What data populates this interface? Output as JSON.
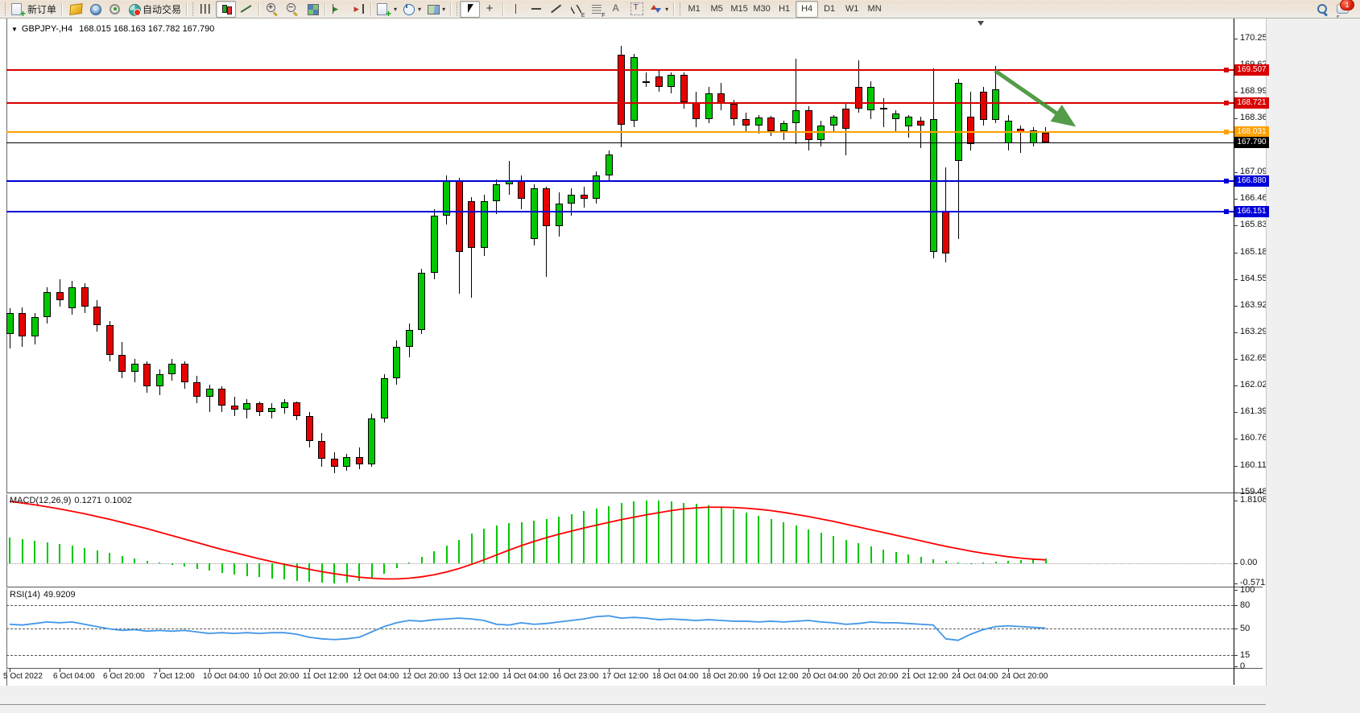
{
  "toolbar": {
    "new_order_label": "新订单",
    "autotrading_label": "自动交易",
    "timeframes": {
      "labels": [
        "M1",
        "M5",
        "M15",
        "M30",
        "H1",
        "H4",
        "D1",
        "W1",
        "MN"
      ],
      "active": "H4"
    },
    "chat_badge": "1"
  },
  "chart": {
    "title": {
      "collapse_arrow": "▼",
      "symbol_period": "GBPJPY-,H4",
      "ohlc": "168.015 168.163 167.782 167.790"
    },
    "indicators_labels": {
      "macd_name": "MACD(12,26,9)",
      "macd_value": "0.1271",
      "macd_signal_value": "0.1002",
      "rsi_name": "RSI(14)",
      "rsi_value": "49.9209"
    }
  },
  "chart_data": {
    "type": "candlestick",
    "symbol": "GBPJPY-",
    "timeframe": "H4",
    "current_bar": {
      "open": 168.015,
      "high": 168.163,
      "low": 167.782,
      "close": 167.79
    },
    "colors": {
      "bull": "#00C800",
      "bear": "#E60000",
      "wick": "#000000",
      "macd_hist": "#00C800",
      "macd_signal": "#FF0000",
      "rsi_line": "#4296E8",
      "arrow": "#3E8F2F"
    },
    "y_axis_ticks": [
      {
        "v": 170.255,
        "t": "170.255"
      },
      {
        "v": 169.625,
        "t": "169.625"
      },
      {
        "v": 168.995,
        "t": "168.995"
      },
      {
        "v": 168.365,
        "t": "168.365"
      },
      {
        "v": 167.09,
        "t": "167.090"
      },
      {
        "v": 166.46,
        "t": "166.460"
      },
      {
        "v": 165.83,
        "t": "165.830"
      },
      {
        "v": 165.185,
        "t": "165.185"
      },
      {
        "v": 164.555,
        "t": "164.555"
      },
      {
        "v": 163.925,
        "t": "163.925"
      },
      {
        "v": 163.295,
        "t": "163.295"
      },
      {
        "v": 162.65,
        "t": "162.650"
      },
      {
        "v": 162.02,
        "t": "162.020"
      },
      {
        "v": 161.39,
        "t": "161.390"
      },
      {
        "v": 160.76,
        "t": "160.760"
      },
      {
        "v": 160.115,
        "t": "160.115"
      },
      {
        "v": 159.485,
        "t": "159.485"
      }
    ],
    "x_labels": [
      "5 Oct 2022",
      "6 Oct 04:00",
      "6 Oct 20:00",
      "7 Oct 12:00",
      "10 Oct 04:00",
      "10 Oct 20:00",
      "11 Oct 12:00",
      "12 Oct 04:00",
      "12 Oct 20:00",
      "13 Oct 12:00",
      "14 Oct 04:00",
      "16 Oct 23:00",
      "17 Oct 12:00",
      "18 Oct 04:00",
      "18 Oct 20:00",
      "19 Oct 12:00",
      "20 Oct 04:00",
      "20 Oct 20:00",
      "21 Oct 12:00",
      "24 Oct 04:00",
      "24 Oct 20:00"
    ],
    "bars_per_label": 4,
    "horizontal_lines": [
      {
        "price": 169.507,
        "tag": "169.507",
        "color": "#D80000",
        "width": 2,
        "handle": true
      },
      {
        "price": 168.721,
        "tag": "168.721",
        "color": "#D80000",
        "width": 2,
        "handle": true
      },
      {
        "price": 168.031,
        "tag": "168.031",
        "color": "#FFA000",
        "width": 2,
        "handle": true
      },
      {
        "price": 167.79,
        "tag": "167.790",
        "color": "#000000",
        "width": 1,
        "handle": false
      },
      {
        "price": 166.88,
        "tag": "166.880",
        "color": "#0000D8",
        "width": 2,
        "handle": true
      },
      {
        "price": 166.151,
        "tag": "166.151",
        "color": "#0000D8",
        "width": 2,
        "handle": true
      }
    ],
    "candles": [
      [
        163.25,
        163.85,
        162.9,
        163.75
      ],
      [
        163.75,
        163.88,
        162.95,
        163.2
      ],
      [
        163.2,
        163.75,
        163.0,
        163.65
      ],
      [
        163.65,
        164.35,
        163.5,
        164.25
      ],
      [
        164.25,
        164.55,
        163.9,
        164.05
      ],
      [
        163.85,
        164.5,
        163.7,
        164.35
      ],
      [
        164.35,
        164.45,
        163.75,
        163.9
      ],
      [
        163.9,
        164.05,
        163.3,
        163.45
      ],
      [
        163.45,
        163.55,
        162.6,
        162.75
      ],
      [
        162.75,
        163.05,
        162.2,
        162.35
      ],
      [
        162.35,
        162.65,
        162.1,
        162.55
      ],
      [
        162.55,
        162.6,
        161.85,
        162.0
      ],
      [
        162.0,
        162.4,
        161.8,
        162.3
      ],
      [
        162.3,
        162.65,
        162.15,
        162.55
      ],
      [
        162.55,
        162.6,
        161.95,
        162.1
      ],
      [
        162.1,
        162.25,
        161.6,
        161.75
      ],
      [
        161.75,
        162.05,
        161.4,
        161.95
      ],
      [
        161.95,
        162.0,
        161.4,
        161.55
      ],
      [
        161.55,
        161.75,
        161.3,
        161.45
      ],
      [
        161.45,
        161.7,
        161.25,
        161.6
      ],
      [
        161.6,
        161.65,
        161.3,
        161.4
      ],
      [
        161.4,
        161.6,
        161.25,
        161.5
      ],
      [
        161.5,
        161.7,
        161.35,
        161.62
      ],
      [
        161.62,
        161.65,
        161.2,
        161.3
      ],
      [
        161.3,
        161.4,
        160.55,
        160.7
      ],
      [
        160.7,
        160.9,
        160.1,
        160.28
      ],
      [
        160.28,
        160.45,
        159.95,
        160.1
      ],
      [
        160.1,
        160.4,
        160.0,
        160.32
      ],
      [
        160.32,
        160.55,
        160.05,
        160.15
      ],
      [
        160.15,
        161.35,
        160.1,
        161.25
      ],
      [
        161.25,
        162.3,
        161.15,
        162.2
      ],
      [
        162.2,
        163.1,
        162.05,
        162.95
      ],
      [
        162.95,
        163.5,
        162.7,
        163.35
      ],
      [
        163.35,
        164.8,
        163.25,
        164.7
      ],
      [
        164.7,
        166.2,
        164.55,
        166.05
      ],
      [
        166.05,
        167.0,
        165.85,
        166.9
      ],
      [
        166.88,
        166.95,
        164.2,
        165.19
      ],
      [
        166.4,
        166.5,
        164.1,
        165.3
      ],
      [
        165.3,
        166.55,
        165.1,
        166.4
      ],
      [
        166.4,
        166.92,
        166.1,
        166.8
      ],
      [
        166.8,
        167.35,
        166.55,
        166.9
      ],
      [
        166.9,
        167.0,
        166.2,
        166.45
      ],
      [
        165.5,
        166.8,
        165.35,
        166.7
      ],
      [
        166.7,
        166.75,
        164.6,
        165.8
      ],
      [
        165.8,
        166.6,
        165.55,
        166.35
      ],
      [
        166.35,
        166.7,
        166.05,
        166.55
      ],
      [
        166.55,
        166.75,
        166.25,
        166.45
      ],
      [
        166.45,
        167.1,
        166.35,
        167.0
      ],
      [
        167.0,
        167.6,
        166.9,
        167.5
      ],
      [
        169.87,
        170.08,
        167.68,
        168.21
      ],
      [
        168.3,
        169.9,
        168.15,
        169.82
      ],
      [
        169.25,
        169.45,
        169.1,
        169.2
      ],
      [
        169.36,
        169.5,
        169.0,
        169.11
      ],
      [
        169.1,
        169.45,
        168.95,
        169.4
      ],
      [
        169.4,
        169.45,
        168.6,
        168.75
      ],
      [
        168.75,
        169.0,
        168.15,
        168.35
      ],
      [
        168.35,
        169.1,
        168.25,
        168.95
      ],
      [
        168.95,
        169.2,
        168.55,
        168.7
      ],
      [
        168.7,
        168.8,
        168.2,
        168.35
      ],
      [
        168.35,
        168.5,
        168.05,
        168.2
      ],
      [
        168.2,
        168.45,
        168.0,
        168.38
      ],
      [
        168.38,
        168.42,
        167.95,
        168.05
      ],
      [
        168.05,
        168.3,
        167.85,
        168.25
      ],
      [
        168.25,
        169.78,
        167.75,
        168.55
      ],
      [
        168.55,
        168.65,
        167.6,
        167.85
      ],
      [
        167.85,
        168.3,
        167.7,
        168.2
      ],
      [
        168.2,
        168.45,
        168.05,
        168.4
      ],
      [
        168.6,
        168.7,
        167.49,
        168.12
      ],
      [
        169.1,
        169.74,
        168.5,
        168.6
      ],
      [
        168.55,
        169.25,
        168.35,
        169.1
      ],
      [
        168.6,
        168.85,
        168.15,
        168.62
      ],
      [
        168.35,
        168.55,
        168.05,
        168.48
      ],
      [
        168.17,
        168.45,
        167.9,
        168.4
      ],
      [
        168.3,
        168.4,
        167.65,
        168.2
      ],
      [
        165.2,
        169.55,
        165.05,
        168.35
      ],
      [
        166.15,
        167.2,
        164.95,
        165.15
      ],
      [
        167.35,
        169.3,
        165.5,
        169.2
      ],
      [
        168.4,
        169.0,
        167.6,
        167.75
      ],
      [
        169.0,
        169.1,
        168.2,
        168.32
      ],
      [
        168.32,
        169.6,
        168.25,
        169.05
      ],
      [
        167.78,
        168.45,
        167.6,
        168.3
      ],
      [
        168.12,
        168.2,
        167.55,
        168.04
      ],
      [
        167.78,
        168.16,
        167.7,
        168.07
      ],
      [
        168.015,
        168.163,
        167.782,
        167.79
      ]
    ],
    "indicators": {
      "macd": {
        "params": "12,26,9",
        "current": 0.1271,
        "current_signal": 0.1002,
        "scale_ticks": [
          {
            "v": 1.8108,
            "t": "1.8108"
          },
          {
            "v": 0,
            "t": "0.00"
          },
          {
            "v": -0.5712,
            "t": "-0.5712"
          }
        ],
        "histogram": [
          0.75,
          0.7,
          0.66,
          0.6,
          0.55,
          0.5,
          0.44,
          0.38,
          0.3,
          0.22,
          0.15,
          0.08,
          0.02,
          -0.04,
          -0.1,
          -0.16,
          -0.22,
          -0.27,
          -0.32,
          -0.36,
          -0.4,
          -0.44,
          -0.47,
          -0.5,
          -0.53,
          -0.55,
          -0.57,
          -0.55,
          -0.5,
          -0.42,
          -0.3,
          -0.15,
          0.02,
          0.18,
          0.35,
          0.52,
          0.68,
          0.85,
          1.0,
          1.1,
          1.15,
          1.18,
          1.22,
          1.28,
          1.35,
          1.42,
          1.5,
          1.58,
          1.66,
          1.73,
          1.78,
          1.81,
          1.8,
          1.78,
          1.75,
          1.72,
          1.68,
          1.62,
          1.55,
          1.47,
          1.38,
          1.28,
          1.18,
          1.08,
          0.98,
          0.88,
          0.78,
          0.68,
          0.58,
          0.48,
          0.4,
          0.32,
          0.25,
          0.18,
          0.12,
          0.06,
          0.02,
          0.0,
          0.02,
          0.05,
          0.08,
          0.1,
          0.12,
          0.13
        ],
        "signal": [
          1.79,
          1.74,
          1.69,
          1.63,
          1.57,
          1.5,
          1.43,
          1.35,
          1.27,
          1.18,
          1.09,
          1.0,
          0.9,
          0.8,
          0.7,
          0.6,
          0.5,
          0.4,
          0.31,
          0.22,
          0.13,
          0.05,
          -0.03,
          -0.1,
          -0.17,
          -0.24,
          -0.3,
          -0.35,
          -0.4,
          -0.43,
          -0.45,
          -0.45,
          -0.43,
          -0.39,
          -0.33,
          -0.25,
          -0.15,
          -0.03,
          0.1,
          0.24,
          0.38,
          0.51,
          0.63,
          0.74,
          0.84,
          0.93,
          1.02,
          1.1,
          1.18,
          1.26,
          1.33,
          1.4,
          1.46,
          1.52,
          1.57,
          1.6,
          1.62,
          1.62,
          1.61,
          1.59,
          1.56,
          1.52,
          1.47,
          1.41,
          1.35,
          1.28,
          1.21,
          1.13,
          1.05,
          0.97,
          0.89,
          0.81,
          0.73,
          0.65,
          0.57,
          0.49,
          0.42,
          0.35,
          0.29,
          0.24,
          0.19,
          0.15,
          0.12,
          0.1
        ]
      },
      "rsi": {
        "period": 14,
        "current": 49.9209,
        "scale_ticks": [
          {
            "v": 100,
            "t": "100"
          },
          {
            "v": 80,
            "t": "80"
          },
          {
            "v": 50,
            "t": "50"
          },
          {
            "v": 15,
            "t": "15"
          },
          {
            "v": 0,
            "t": "0"
          }
        ],
        "levels": [
          80,
          50,
          15
        ],
        "values": [
          55,
          54,
          56,
          58,
          57,
          58,
          55,
          52,
          49,
          47,
          48,
          46,
          47,
          46,
          47,
          45,
          43,
          44,
          43,
          44,
          43,
          44,
          44,
          42,
          38,
          36,
          35,
          36,
          38,
          45,
          52,
          57,
          60,
          59,
          61,
          62,
          63,
          62,
          60,
          55,
          54,
          57,
          55,
          56,
          58,
          60,
          62,
          65,
          66,
          63,
          64,
          63,
          61,
          62,
          61,
          60,
          61,
          60,
          59,
          59,
          58,
          59,
          58,
          59,
          60,
          58,
          57,
          55,
          56,
          58,
          57,
          57,
          56,
          55,
          54,
          36,
          34,
          42,
          48,
          52,
          53,
          52,
          51,
          50
        ]
      }
    },
    "annotations": [
      {
        "type": "arrow",
        "color": "#3E8F2F",
        "from_price": 169.53,
        "to_price": 168.3
      }
    ]
  }
}
